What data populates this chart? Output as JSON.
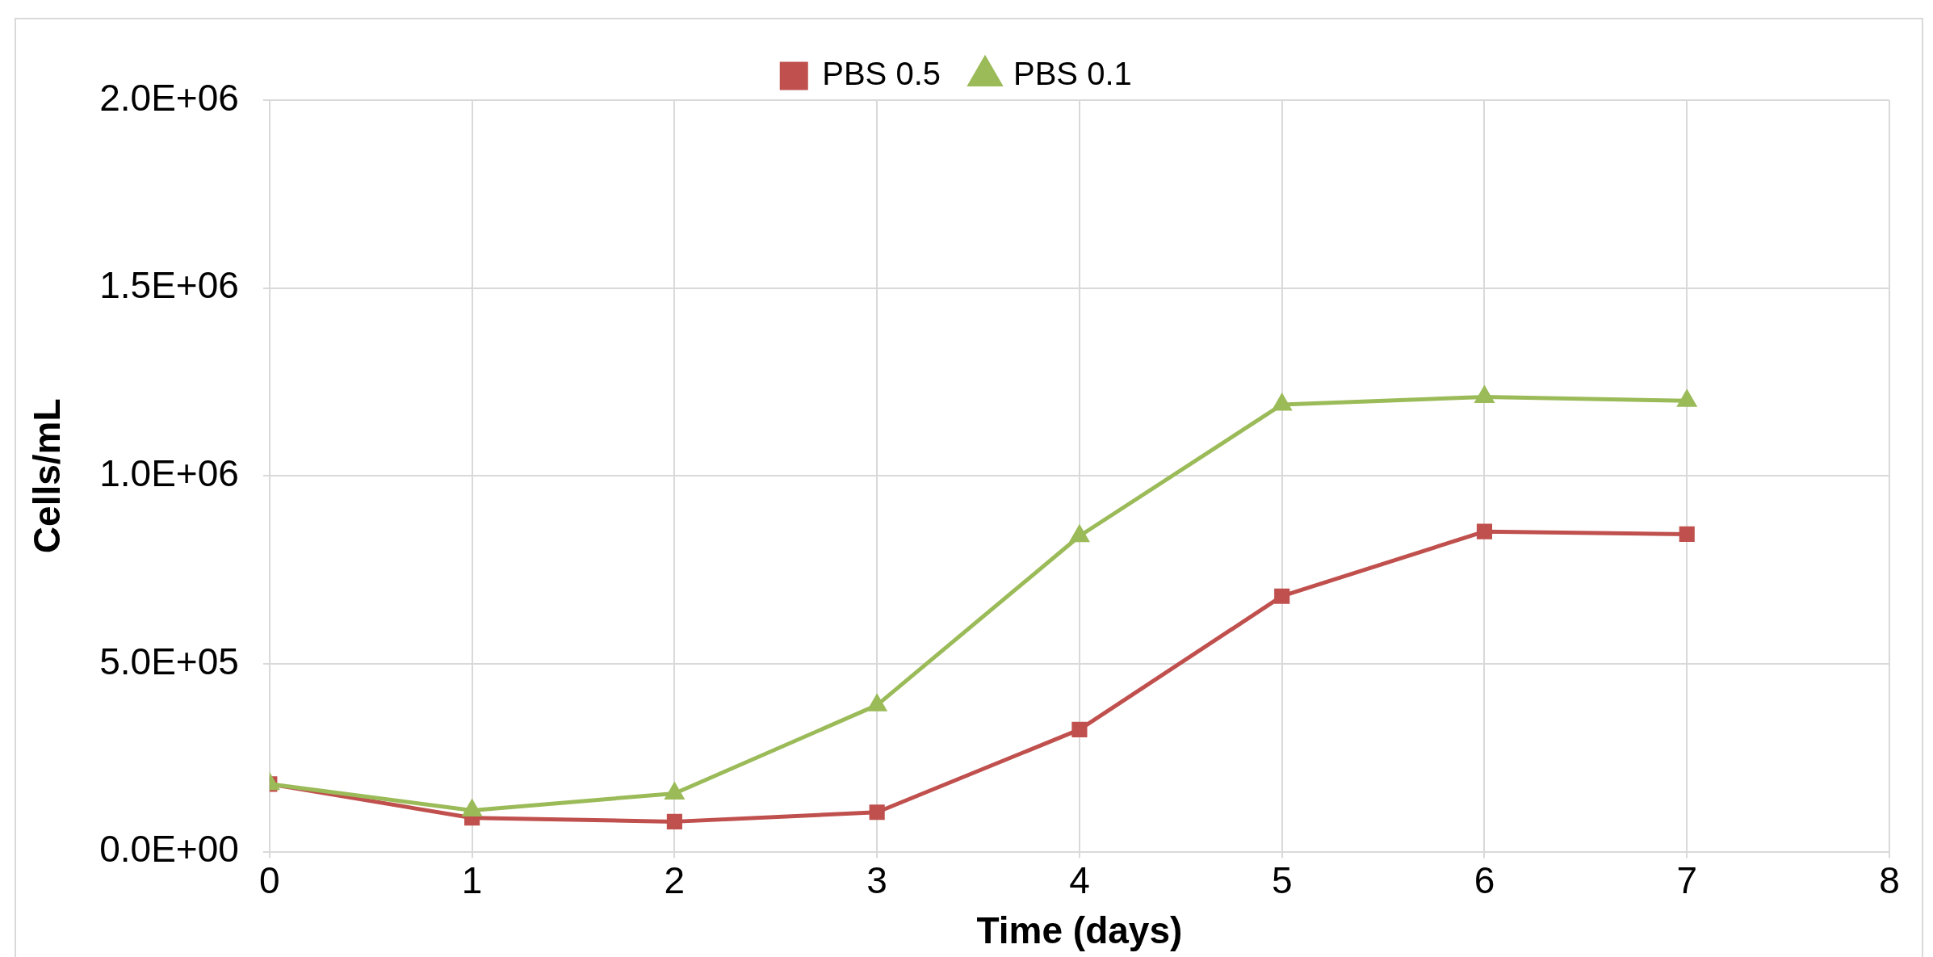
{
  "chart_data": {
    "type": "line",
    "xlabel": "Time (days)",
    "ylabel": "Cells/mL",
    "x": [
      0,
      1,
      2,
      3,
      4,
      5,
      6,
      7
    ],
    "series": [
      {
        "name": "PBS 0.5",
        "color": "#c0504d",
        "marker": "square",
        "values": [
          180000,
          90000,
          80000,
          105000,
          325000,
          680000,
          852000,
          845000
        ]
      },
      {
        "name": "PBS 0.1",
        "color": "#9bbb59",
        "marker": "triangle",
        "values": [
          180000,
          110000,
          155000,
          390000,
          840000,
          1190000,
          1210000,
          1200000
        ]
      }
    ],
    "xlim": [
      0,
      8
    ],
    "xticks": [
      0,
      1,
      2,
      3,
      4,
      5,
      6,
      7,
      8
    ],
    "ylim": [
      0,
      2000000
    ],
    "yticks": [
      {
        "value": 0,
        "label": "0.0E+00"
      },
      {
        "value": 500000,
        "label": "5.0E+05"
      },
      {
        "value": 1000000,
        "label": "1.0E+06"
      },
      {
        "value": 1500000,
        "label": "1.5E+06"
      },
      {
        "value": 2000000,
        "label": "2.0E+06"
      }
    ],
    "grid": true,
    "legend": "top",
    "line_style": "solid"
  }
}
